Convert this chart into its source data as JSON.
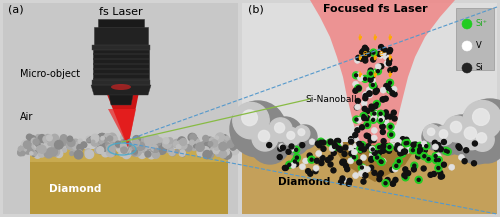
{
  "fig_width": 5.0,
  "fig_height": 2.17,
  "dpi": 100,
  "bg_color": "#d4d4d4",
  "panel_a_bg": "#cccccc",
  "panel_b_bg": "#e0e0e0",
  "diamond_a_color": "#b8983a",
  "diamond_b_color": "#c4a05a",
  "laser_red": "#cc0000",
  "laser_pink": "#f07070",
  "texts": {
    "a_label": "(a)",
    "b_label": "(b)",
    "fs_laser": "fs Laser",
    "micro_object": "Micro-object",
    "air": "Air",
    "diamond_a": "Diamond",
    "focused_laser": "Focused fs Laser",
    "si_nanoball": "Si-Nanoball",
    "diamond_b": "Diamond"
  },
  "legend_items": [
    {
      "label": "Si⁺",
      "dot_color": "#22cc22",
      "text_color": "#22aa22"
    },
    {
      "label": "V",
      "dot_color": "#ffffff",
      "text_color": "#000000"
    },
    {
      "label": "Si",
      "dot_color": "#222222",
      "text_color": "#000000"
    }
  ],
  "connector_blue": "#5599cc",
  "connector_green": "#88bb44",
  "orange_arrow": "#ffaa00"
}
